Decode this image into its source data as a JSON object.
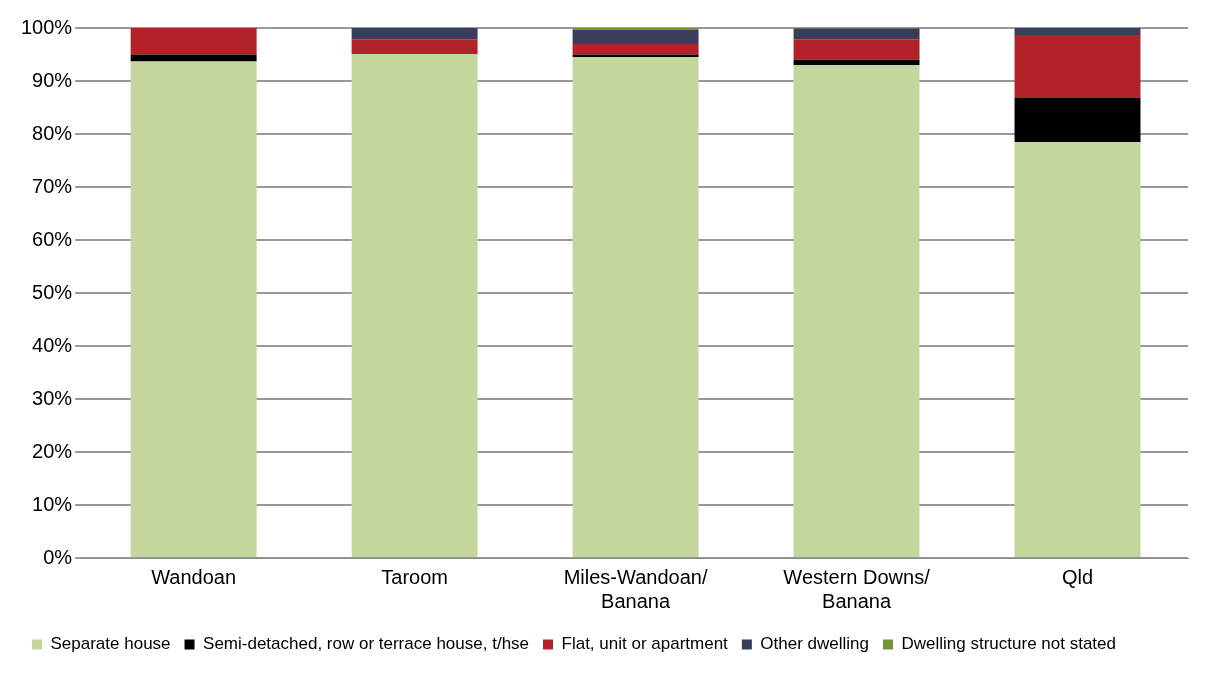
{
  "chart_data": {
    "type": "bar",
    "stacked": true,
    "categories": [
      "Wandoan",
      "Taroom",
      "Miles-Wandoan/\nBanana",
      "Western Downs/\nBanana",
      "Qld"
    ],
    "series": [
      {
        "name": "Separate house",
        "color": "#c3d69b",
        "values": [
          93.7,
          95.1,
          94.5,
          93.0,
          78.5
        ]
      },
      {
        "name": "Semi-detached, row or terrace house, t/hse",
        "color": "#000000",
        "values": [
          1.3,
          0,
          0.5,
          1.0,
          8.3
        ]
      },
      {
        "name": "Flat, unit or apartment",
        "color": "#b22228",
        "values": [
          5.0,
          2.8,
          2.0,
          3.9,
          11.9
        ]
      },
      {
        "name": "Other dwelling",
        "color": "#383d5c",
        "values": [
          0,
          2.1,
          2.7,
          2.0,
          1.3
        ]
      },
      {
        "name": "Dwelling structure not stated",
        "color": "#77933c",
        "values": [
          0,
          0,
          0.3,
          0.1,
          0
        ]
      }
    ],
    "ylim": [
      0,
      100
    ],
    "yticks": [
      {
        "value": 0,
        "label": "0%"
      },
      {
        "value": 10,
        "label": "10%"
      },
      {
        "value": 20,
        "label": "20%"
      },
      {
        "value": 30,
        "label": "30%"
      },
      {
        "value": 40,
        "label": "40%"
      },
      {
        "value": 50,
        "label": "50%"
      },
      {
        "value": 60,
        "label": "60%"
      },
      {
        "value": 70,
        "label": "70%"
      },
      {
        "value": 80,
        "label": "80%"
      },
      {
        "value": 90,
        "label": "90%"
      },
      {
        "value": 100,
        "label": "100%"
      }
    ],
    "grid": "y",
    "legend": "bottom"
  }
}
